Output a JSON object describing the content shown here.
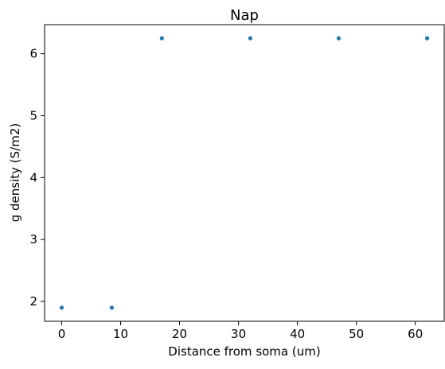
{
  "chart_data": {
    "type": "scatter",
    "title": "Nap",
    "xlabel": "Distance from soma (um)",
    "ylabel": "g density (S/m2)",
    "x": [
      0,
      8.5,
      17,
      32,
      47,
      62
    ],
    "y": [
      1.9,
      1.9,
      6.25,
      6.25,
      6.25,
      6.25
    ],
    "xlim": [
      -2.9,
      64.9
    ],
    "ylim": [
      1.68,
      6.47
    ],
    "xticks": [
      0,
      10,
      20,
      30,
      40,
      50,
      60
    ],
    "yticks": [
      2,
      3,
      4,
      5,
      6
    ],
    "marker_color": "#1f77b4",
    "grid": false,
    "legend": false
  }
}
